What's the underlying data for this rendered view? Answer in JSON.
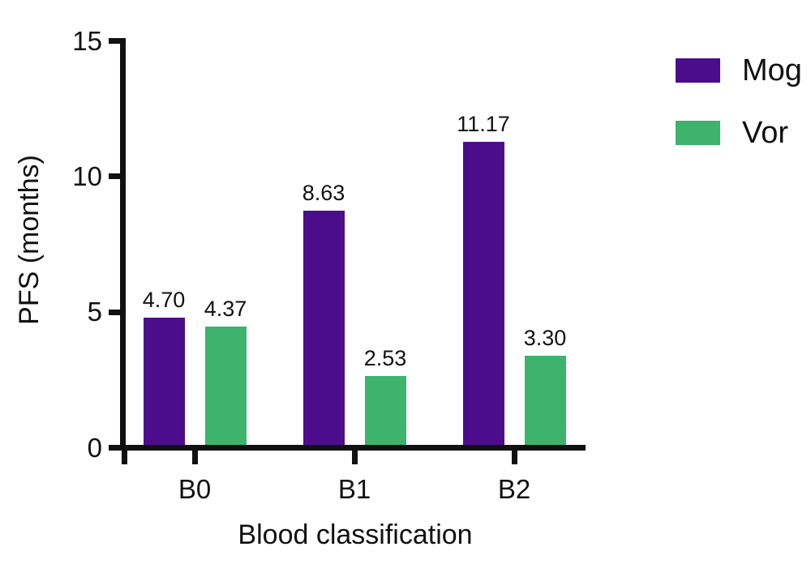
{
  "chart_data": {
    "type": "bar",
    "categories": [
      "B0",
      "B1",
      "B2"
    ],
    "series": [
      {
        "name": "Mog",
        "color": "#4B0D8C",
        "values": [
          4.7,
          8.63,
          11.17
        ],
        "labels": [
          "4.70",
          "8.63",
          "11.17"
        ]
      },
      {
        "name": "Vor",
        "color": "#3DB36E",
        "values": [
          4.37,
          2.53,
          3.3
        ],
        "labels": [
          "4.37",
          "2.53",
          "3.30"
        ]
      }
    ],
    "xlabel": "Blood classification",
    "ylabel": "PFS (months)",
    "ylim": [
      0,
      15
    ],
    "yticks": [
      0,
      5,
      10,
      15
    ],
    "grid": false,
    "legend_position": "top-right"
  },
  "colors": {
    "axis": "#111111",
    "text": "#111111",
    "background": "#ffffff"
  }
}
